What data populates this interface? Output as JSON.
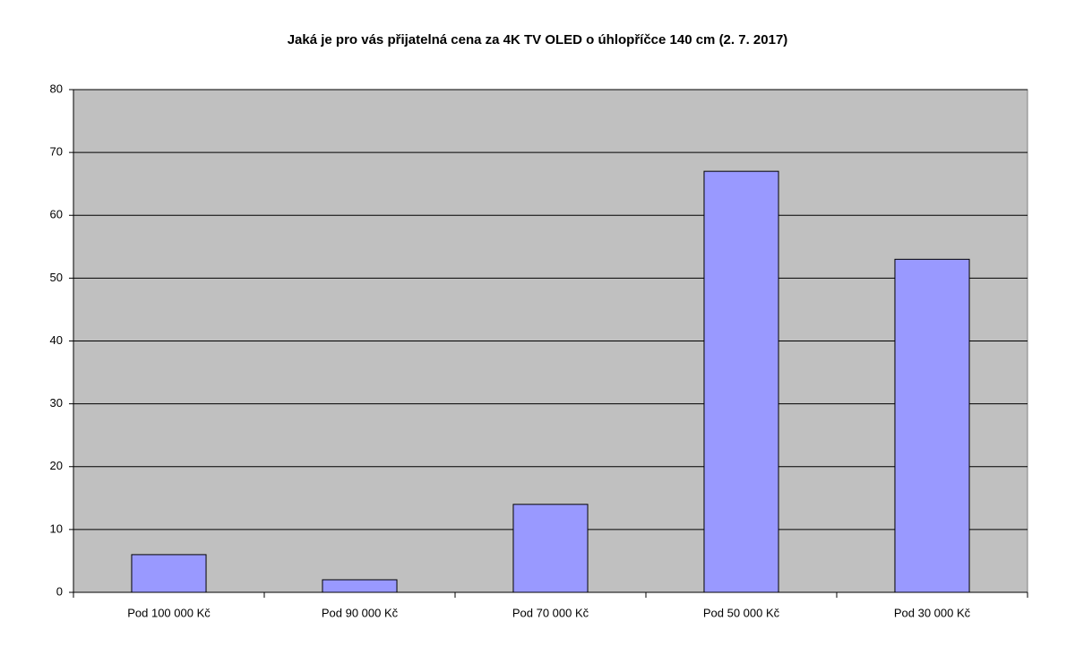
{
  "chart_data": {
    "type": "bar",
    "title": "Jaká je pro vás přijatelná cena za 4K TV OLED o úhlopříčce 140 cm (2. 7. 2017)",
    "categories": [
      "Pod 100 000 Kč",
      "Pod 90 000 Kč",
      "Pod 70 000 Kč",
      "Pod 50 000 Kč",
      "Pod 30 000 Kč"
    ],
    "values": [
      6,
      2,
      14,
      67,
      53
    ],
    "color": "#9999ff",
    "plot_background": "#c0c0c0",
    "ylim": [
      0,
      80
    ],
    "yticks": [
      0,
      10,
      20,
      30,
      40,
      50,
      60,
      70,
      80
    ],
    "grid": true
  }
}
